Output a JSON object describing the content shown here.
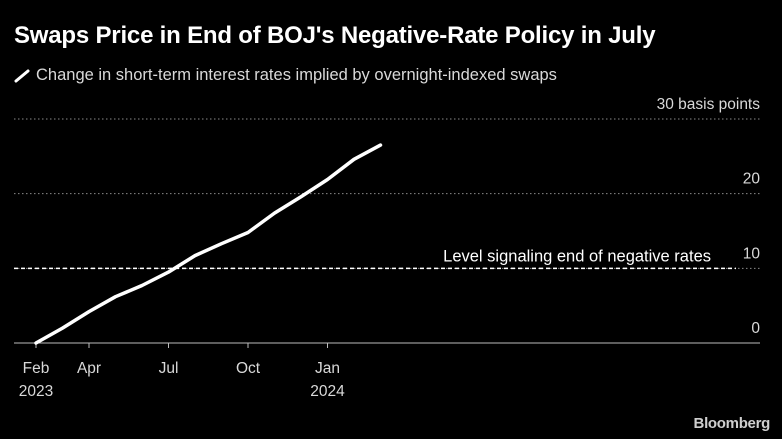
{
  "title": "Swaps Price in End of BOJ's Negative-Rate Policy in July",
  "source": "Bloomberg",
  "colors": {
    "background": "#000000",
    "line": "#ffffff",
    "grid": "#8a8a8a",
    "text": "#d9d9d9"
  },
  "chart_data": {
    "type": "line",
    "series": [
      {
        "name": "Change in short-term interest rates implied by overnight-indexed swaps",
        "x": [
          "2023-02",
          "2023-03",
          "2023-04",
          "2023-05",
          "2023-06",
          "2023-07",
          "2023-08",
          "2023-09",
          "2023-10",
          "2023-11",
          "2023-12",
          "2024-01",
          "2024-02",
          "2024-03"
        ],
        "values": [
          0,
          2,
          4.2,
          6.2,
          7.7,
          9.5,
          11.7,
          13.3,
          14.8,
          17.4,
          19.6,
          21.9,
          24.6,
          26.5
        ]
      }
    ],
    "x_ticks": [
      {
        "x": "2023-02",
        "label": "Feb",
        "sublabel": "2023"
      },
      {
        "x": "2023-04",
        "label": "Apr",
        "sublabel": ""
      },
      {
        "x": "2023-07",
        "label": "Jul",
        "sublabel": ""
      },
      {
        "x": "2023-10",
        "label": "Oct",
        "sublabel": ""
      },
      {
        "x": "2024-01",
        "label": "Jan",
        "sublabel": "2024"
      }
    ],
    "y_ticks": [
      {
        "value": 0,
        "label": "0"
      },
      {
        "value": 10,
        "label": "10"
      },
      {
        "value": 20,
        "label": "20"
      },
      {
        "value": 30,
        "label": "30 basis points"
      }
    ],
    "ylim": [
      0,
      30
    ],
    "grid": "horizontal dotted",
    "legend_position": "top-left",
    "reference_line": {
      "value": 10,
      "label": "Level signaling end of negative rates",
      "style": "dashed"
    }
  }
}
